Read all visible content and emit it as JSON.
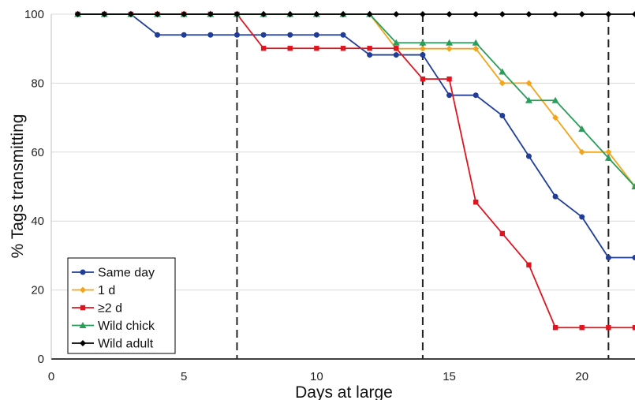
{
  "chart_data": {
    "type": "line",
    "xlabel": "Days at large",
    "ylabel": "% Tags transmitting",
    "xlim": [
      0,
      22
    ],
    "ylim": [
      0,
      100
    ],
    "x_ticks": [
      "0",
      "5",
      "10",
      "15",
      "20"
    ],
    "y_ticks": [
      "0",
      "20",
      "40",
      "60",
      "80",
      "100"
    ],
    "grid": "horizontal",
    "vlines": [
      7,
      14,
      21
    ],
    "legend_position": "bottom-left",
    "x": [
      1,
      2,
      3,
      4,
      5,
      6,
      7,
      8,
      9,
      10,
      11,
      12,
      13,
      14,
      15,
      16,
      17,
      18,
      19,
      20,
      21,
      22
    ],
    "series": [
      {
        "name": "Same day",
        "color": "#1f3d99",
        "marker": "circle",
        "values": [
          100,
          100,
          100,
          94,
          94,
          94,
          94,
          94,
          94,
          94,
          94,
          88.2,
          88.2,
          88.2,
          76.5,
          76.5,
          70.6,
          58.8,
          47.1,
          41.2,
          29.4,
          29.4
        ]
      },
      {
        "name": "1 d",
        "color": "#f2a51a",
        "marker": "diamond",
        "values": [
          100,
          100,
          100,
          100,
          100,
          100,
          100,
          100,
          100,
          100,
          100,
          100,
          90,
          90,
          90,
          90,
          80,
          80,
          70,
          60,
          60,
          50
        ]
      },
      {
        "name": "≥2 d",
        "color": "#e0141e",
        "marker": "square",
        "values": [
          100,
          100,
          100,
          100,
          100,
          100,
          100,
          90.1,
          90.1,
          90.1,
          90.1,
          90.1,
          90.1,
          81.2,
          81.2,
          45.5,
          36.4,
          27.3,
          9.1,
          9.1,
          9.1,
          9.1
        ]
      },
      {
        "name": "Wild chick",
        "color": "#2a9d5a",
        "marker": "triangle",
        "values": [
          100,
          100,
          100,
          100,
          100,
          100,
          100,
          100,
          100,
          100,
          100,
          100,
          91.7,
          91.7,
          91.7,
          91.7,
          83.3,
          75,
          75,
          66.7,
          58.3,
          50
        ]
      },
      {
        "name": "Wild adult",
        "color": "#000000",
        "marker": "diamond",
        "values": [
          100,
          100,
          100,
          100,
          100,
          100,
          100,
          100,
          100,
          100,
          100,
          100,
          100,
          100,
          100,
          100,
          100,
          100,
          100,
          100,
          100,
          100
        ]
      }
    ]
  }
}
